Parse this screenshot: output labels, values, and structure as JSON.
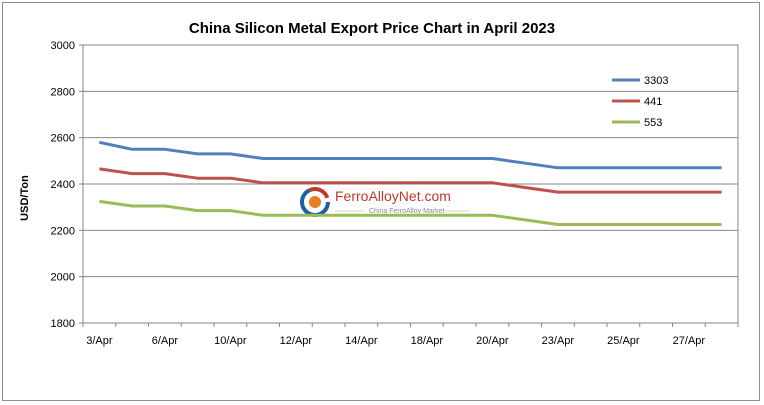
{
  "chart_data": {
    "type": "line",
    "title": "China Silicon Metal Export Price Chart in April 2023",
    "xlabel": "",
    "ylabel": "USD/Ton",
    "ylim": [
      1800,
      3000
    ],
    "yticks": [
      1800,
      2000,
      2200,
      2400,
      2600,
      2800,
      3000
    ],
    "grid": true,
    "legend_position": "top-right",
    "x": [
      "3/Apr",
      "4/Apr",
      "6/Apr",
      "7/Apr",
      "10/Apr",
      "11/Apr",
      "12/Apr",
      "13/Apr",
      "14/Apr",
      "17/Apr",
      "18/Apr",
      "19/Apr",
      "20/Apr",
      "21/Apr",
      "23/Apr",
      "24/Apr",
      "25/Apr",
      "26/Apr",
      "27/Apr",
      "28/Apr"
    ],
    "xtick_labels": [
      "3/Apr",
      "6/Apr",
      "10/Apr",
      "12/Apr",
      "14/Apr",
      "18/Apr",
      "20/Apr",
      "23/Apr",
      "25/Apr",
      "27/Apr"
    ],
    "series": [
      {
        "name": "3303",
        "color": "#4f81bd",
        "values": [
          2580,
          2550,
          2550,
          2530,
          2530,
          2510,
          2510,
          2510,
          2510,
          2510,
          2510,
          2510,
          2510,
          2490,
          2470,
          2470,
          2470,
          2470,
          2470,
          2470
        ]
      },
      {
        "name": "441",
        "color": "#c0504d",
        "values": [
          2465,
          2445,
          2445,
          2425,
          2425,
          2405,
          2405,
          2405,
          2405,
          2405,
          2405,
          2405,
          2405,
          2385,
          2365,
          2365,
          2365,
          2365,
          2365,
          2365
        ]
      },
      {
        "name": "553",
        "color": "#9bbb59",
        "values": [
          2325,
          2305,
          2305,
          2285,
          2285,
          2265,
          2265,
          2265,
          2265,
          2265,
          2265,
          2265,
          2265,
          2245,
          2225,
          2225,
          2225,
          2225,
          2225,
          2225
        ]
      }
    ]
  },
  "watermark": {
    "text": "FerroAlloyNet.com",
    "subtext": "China FerroAlloy Market",
    "colors": {
      "red": "#c0392b",
      "blue": "#1f5fa8",
      "orange": "#e67e22"
    }
  }
}
